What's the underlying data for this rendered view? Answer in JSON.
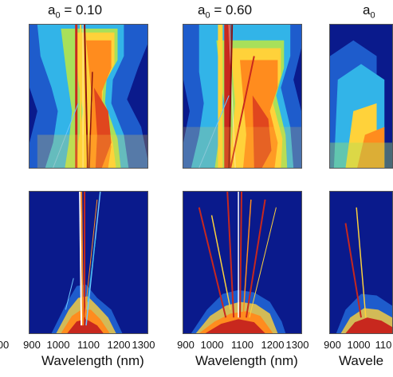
{
  "figure": {
    "columns": [
      {
        "title_prefix": "a",
        "title_sub": "0",
        "title_value": " = 0.10",
        "xlabel": "Wavelength (nm)",
        "xticks": [
          "900",
          "1000",
          "1100",
          "1200",
          "1300"
        ]
      },
      {
        "title_prefix": "a",
        "title_sub": "0",
        "title_value": " = 0.60",
        "xlabel": "Wavelength (nm)",
        "xticks": [
          "900",
          "1000",
          "1100",
          "1200",
          "1300"
        ]
      },
      {
        "title_prefix": "a",
        "title_sub": "0",
        "title_value": "",
        "xlabel": "Wavele",
        "xticks": [
          "900",
          "1000",
          "110"
        ]
      }
    ],
    "left_partial_tick": "00"
  },
  "colors": {
    "background": "#0a1a8c",
    "line": "#c8281e",
    "warm": "#ff8c1e",
    "cool": "#2a9fe0"
  }
}
